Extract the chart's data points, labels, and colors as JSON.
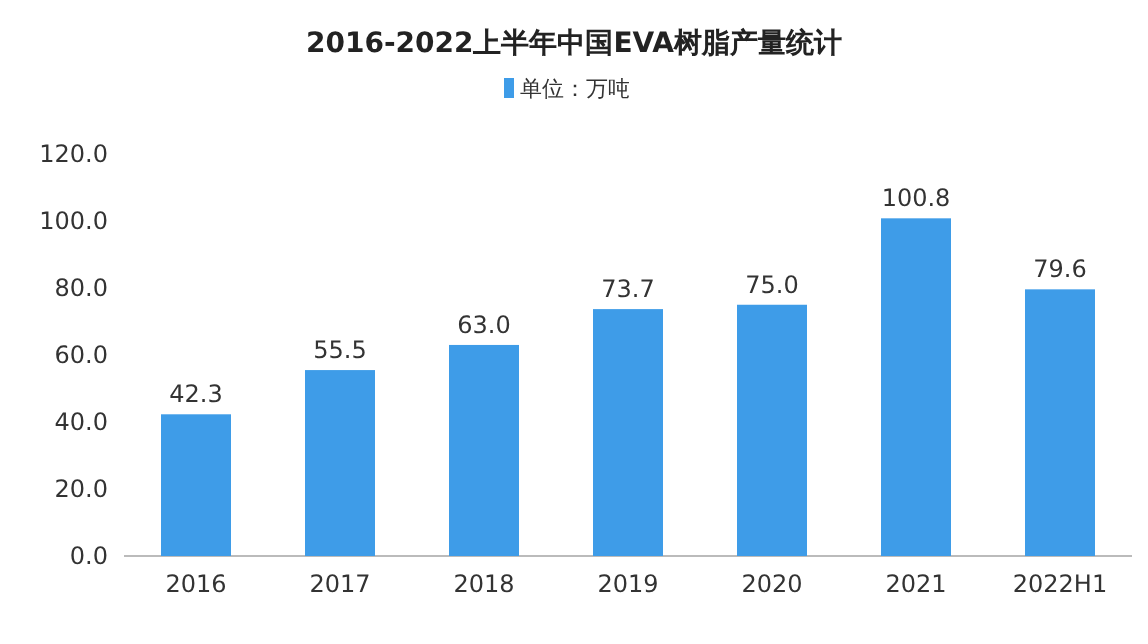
{
  "chart_data": {
    "type": "bar",
    "title": "2016-2022上半年中国EVA树脂产量统计",
    "categories": [
      "2016",
      "2017",
      "2018",
      "2019",
      "2020",
      "2021",
      "2022H1"
    ],
    "series": [
      {
        "name": "单位：万吨",
        "color": "#3e9ce8",
        "values": [
          42.3,
          55.5,
          63.0,
          73.7,
          75.0,
          100.8,
          79.6
        ],
        "value_labels": [
          "42.3",
          "55.5",
          "63.0",
          "73.7",
          "75.0",
          "100.8",
          "79.6"
        ]
      }
    ],
    "ylim": [
      0,
      120
    ],
    "yticks": [
      {
        "value": 0,
        "label": "0.0"
      },
      {
        "value": 20,
        "label": "20.0"
      },
      {
        "value": 40,
        "label": "40.0"
      },
      {
        "value": 60,
        "label": "60.0"
      },
      {
        "value": 80,
        "label": "80.0"
      },
      {
        "value": 100,
        "label": "100.0"
      },
      {
        "value": 120,
        "label": "120.0"
      }
    ],
    "legend": "top"
  }
}
